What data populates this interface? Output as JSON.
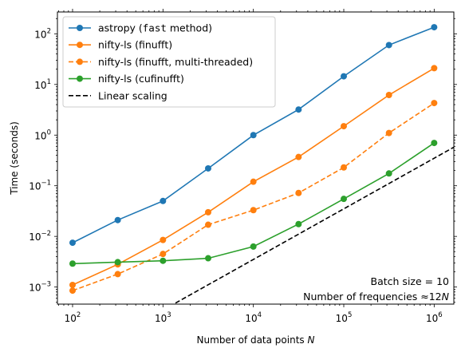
{
  "chart_data": {
    "type": "line",
    "title": "",
    "xlabel": "Number of data points N",
    "ylabel": "Time (seconds)",
    "xscale": "log",
    "yscale": "log",
    "xlim": [
      68,
      1650000
    ],
    "ylim": [
      0.00046,
      270
    ],
    "grid": false,
    "legend_position": "top-left",
    "x": [
      100,
      316,
      1000,
      3162,
      10000,
      31623,
      100000,
      316228,
      1000000
    ],
    "x_tick_labels": [
      {
        "value": 100,
        "base": "10",
        "exp": "2"
      },
      {
        "value": 1000,
        "base": "10",
        "exp": "3"
      },
      {
        "value": 10000,
        "base": "10",
        "exp": "4"
      },
      {
        "value": 100000,
        "base": "10",
        "exp": "5"
      },
      {
        "value": 1000000,
        "base": "10",
        "exp": "6"
      }
    ],
    "y_tick_labels": [
      {
        "value": 0.001,
        "base": "10",
        "exp": "−3"
      },
      {
        "value": 0.01,
        "base": "10",
        "exp": "−2"
      },
      {
        "value": 0.1,
        "base": "10",
        "exp": "−1"
      },
      {
        "value": 1,
        "base": "10",
        "exp": "0"
      },
      {
        "value": 10,
        "base": "10",
        "exp": "1"
      },
      {
        "value": 100,
        "base": "10",
        "exp": "2"
      }
    ],
    "series": [
      {
        "name": "astropy (fast method)",
        "name_parts": [
          "astropy (",
          "fast",
          " method)"
        ],
        "color": "#1f77b4",
        "style": "solid",
        "marker": true,
        "values": [
          0.0075,
          0.021,
          0.05,
          0.22,
          1.0,
          3.2,
          14.5,
          60,
          135
        ]
      },
      {
        "name": "nifty-ls (finufft)",
        "color": "#ff7f0e",
        "style": "solid",
        "marker": true,
        "values": [
          0.0011,
          0.0028,
          0.0085,
          0.03,
          0.12,
          0.37,
          1.5,
          6.2,
          21
        ]
      },
      {
        "name": "nifty-ls (finufft, multi-threaded)",
        "color": "#ff7f0e",
        "style": "dashed",
        "marker": true,
        "values": [
          0.00085,
          0.0018,
          0.0045,
          0.017,
          0.033,
          0.072,
          0.23,
          1.1,
          4.3
        ]
      },
      {
        "name": "nifty-ls (cufinufft)",
        "color": "#2ca02c",
        "style": "solid",
        "marker": true,
        "values": [
          0.0029,
          0.0031,
          0.0033,
          0.0037,
          0.0063,
          0.0175,
          0.055,
          0.175,
          0.7
        ]
      },
      {
        "name": "Linear scaling",
        "color": "#000000",
        "style": "dashed",
        "marker": false,
        "x": [
          1000,
          2000000
        ],
        "values": [
          0.00035,
          0.7
        ]
      }
    ],
    "annotations": [
      "Batch size = 10",
      "Number of frequencies ≈12N"
    ]
  }
}
